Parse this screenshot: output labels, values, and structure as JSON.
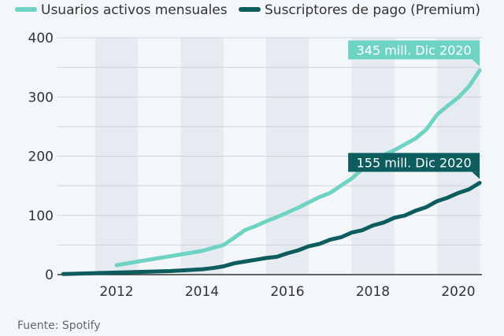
{
  "chart_data": {
    "type": "line",
    "title": "",
    "xlabel": "",
    "ylabel": "",
    "ylim": [
      0,
      400
    ],
    "yticks": [
      0,
      100,
      200,
      300,
      400
    ],
    "xticks": [
      2012,
      2014,
      2016,
      2018,
      2020
    ],
    "grid": true,
    "legend_position": "top",
    "source": "Fuente: Spotify",
    "series": [
      {
        "name": "Usuarios activos mensuales",
        "color": "#6fd3c4",
        "x": [
          2012,
          2012.25,
          2012.5,
          2012.75,
          2013,
          2013.25,
          2013.5,
          2013.75,
          2014,
          2014.25,
          2014.5,
          2014.75,
          2015,
          2015.25,
          2015.5,
          2015.75,
          2016,
          2016.25,
          2016.5,
          2016.75,
          2017,
          2017.25,
          2017.5,
          2017.75,
          2018,
          2018.25,
          2018.5,
          2018.75,
          2019,
          2019.25,
          2019.5,
          2019.75,
          2020,
          2020.25,
          2020.5
        ],
        "values": [
          16,
          19,
          22,
          25,
          28,
          31,
          34,
          37,
          40,
          45,
          50,
          62,
          75,
          82,
          90,
          97,
          105,
          113,
          122,
          131,
          138,
          150,
          162,
          178,
          195,
          202,
          210,
          220,
          230,
          245,
          270,
          285,
          299,
          318,
          345
        ],
        "annotation": "345 mill. Dic 2020"
      },
      {
        "name": "Suscriptores de pago (Premium)",
        "color": "#0d5c5e",
        "x": [
          2010.75,
          2011,
          2011.25,
          2011.5,
          2011.75,
          2012,
          2012.25,
          2012.5,
          2012.75,
          2013,
          2013.25,
          2013.5,
          2013.75,
          2014,
          2014.25,
          2014.5,
          2014.75,
          2015,
          2015.25,
          2015.5,
          2015.75,
          2016,
          2016.25,
          2016.5,
          2016.75,
          2017,
          2017.25,
          2017.5,
          2017.75,
          2018,
          2018.25,
          2018.5,
          2018.75,
          2019,
          2019.25,
          2019.5,
          2019.75,
          2020,
          2020.25,
          2020.5
        ],
        "values": [
          1,
          1.5,
          2,
          2.5,
          3,
          3.5,
          4,
          4.5,
          5,
          5.5,
          6,
          7,
          8,
          9,
          11,
          14,
          19,
          22,
          25,
          28,
          30,
          36,
          41,
          48,
          52,
          59,
          63,
          71,
          75,
          83,
          88,
          96,
          100,
          108,
          114,
          124,
          130,
          138,
          144,
          155
        ],
        "annotation": "155 mill. Dic 2020"
      }
    ]
  }
}
